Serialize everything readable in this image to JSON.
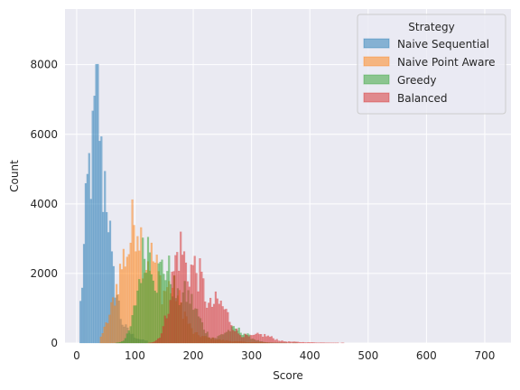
{
  "chart_data": {
    "type": "histogram",
    "xlabel": "Score",
    "ylabel": "Count",
    "xlim": [
      -20,
      745
    ],
    "ylim": [
      0,
      9600
    ],
    "xticks": [
      0,
      100,
      200,
      300,
      400,
      500,
      600,
      700
    ],
    "yticks": [
      0,
      2000,
      4000,
      6000,
      8000
    ],
    "grid": true,
    "legend": {
      "title": "Strategy",
      "placement": "top-right"
    },
    "bin_width": 3,
    "series": [
      {
        "name": "Naive Sequential",
        "color": "#1f77b4",
        "peaks": [
          {
            "x": 36,
            "count": 9100
          },
          {
            "x": 34,
            "count": 8700
          },
          {
            "x": 24,
            "count": 6600
          },
          {
            "x": 48,
            "count": 6100
          },
          {
            "x": 62,
            "count": 2400
          }
        ],
        "range": [
          5,
          120
        ]
      },
      {
        "name": "Naive Point Aware",
        "color": "#ff7f0e",
        "peaks": [
          {
            "x": 102,
            "count": 4700
          },
          {
            "x": 91,
            "count": 3500
          },
          {
            "x": 125,
            "count": 3200
          },
          {
            "x": 160,
            "count": 2100
          }
        ],
        "range": [
          40,
          330
        ]
      },
      {
        "name": "Greedy",
        "color": "#2ca02c",
        "peaks": [
          {
            "x": 122,
            "count": 3700
          },
          {
            "x": 150,
            "count": 2800
          },
          {
            "x": 185,
            "count": 1800
          },
          {
            "x": 270,
            "count": 500
          }
        ],
        "range": [
          55,
          400
        ]
      },
      {
        "name": "Balanced",
        "color": "#d62728",
        "peaks": [
          {
            "x": 178,
            "count": 3500
          },
          {
            "x": 200,
            "count": 2800
          },
          {
            "x": 240,
            "count": 1500
          },
          {
            "x": 315,
            "count": 300
          }
        ],
        "range": [
          90,
          520
        ]
      }
    ]
  }
}
